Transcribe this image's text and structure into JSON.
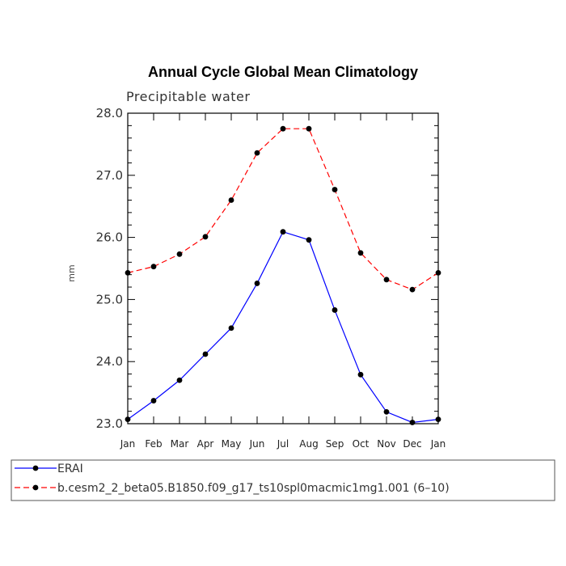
{
  "chart_data": {
    "type": "line",
    "title": "Annual Cycle Global Mean Climatology",
    "subtitle": "Precipitable water",
    "ylabel": "mm",
    "xlabel": "",
    "ylim": [
      23.0,
      28.0
    ],
    "yticks": [
      "23.0",
      "24.0",
      "25.0",
      "26.0",
      "27.0",
      "28.0"
    ],
    "categories": [
      "Jan",
      "Feb",
      "Mar",
      "Apr",
      "May",
      "Jun",
      "Jul",
      "Aug",
      "Sep",
      "Oct",
      "Nov",
      "Dec",
      "Jan"
    ],
    "series": [
      {
        "name": "ERAI",
        "color": "#0000ff",
        "dash": "solid",
        "values": [
          23.07,
          23.37,
          23.7,
          24.12,
          24.54,
          25.26,
          26.09,
          25.96,
          24.83,
          23.79,
          23.19,
          23.02,
          23.07
        ]
      },
      {
        "name": "b.cesm2_2_beta05.B1850.f09_g17_ts10spl0macmic1mg1.001 (6–10)",
        "color": "#ff0000",
        "dash": "dashed",
        "values": [
          25.43,
          25.53,
          25.73,
          26.01,
          26.6,
          27.36,
          27.75,
          27.75,
          26.77,
          25.75,
          25.32,
          25.16,
          25.43
        ]
      }
    ],
    "grid": false,
    "legend_position": "bottom"
  }
}
